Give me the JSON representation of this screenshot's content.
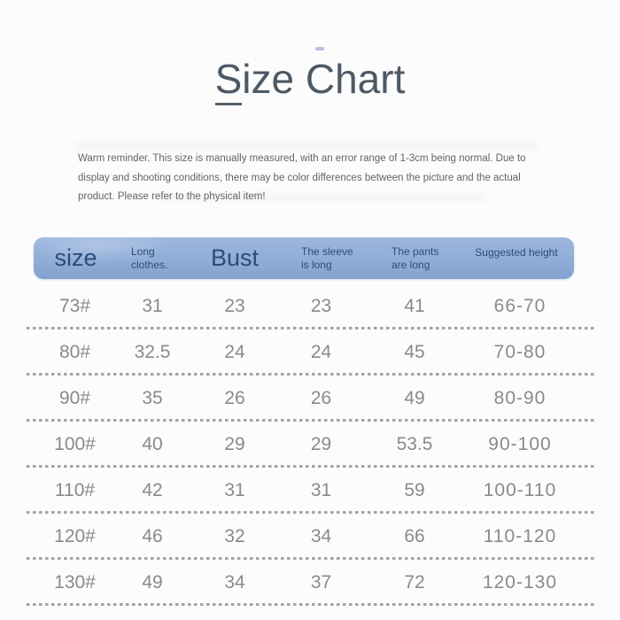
{
  "page": {
    "title_first_letter": "S",
    "title_rest": "ize Chart"
  },
  "notice": {
    "text": "Warm reminder. This size is manually measured, with an error range of 1-3cm being normal. Due to display and shooting conditions, there may be color differences between the picture and the actual product. Please refer to the physical item!"
  },
  "table_header": {
    "col1": "size",
    "col2_line1": "Long",
    "col2_line2": "clothes.",
    "col3": "Bust",
    "col4_line1": "The sleeve",
    "col4_line2": "is long",
    "col5_line1": "The pants",
    "col5_line2": "are long",
    "col6": "Suggested height"
  },
  "colors": {
    "header_bg": "#8fadd7",
    "header_text": "#2c4d77",
    "row_text": "#8a8a8a",
    "divider": "#a3a3a3",
    "title_text": "#4d5965"
  },
  "chart_data": {
    "type": "table",
    "title": "Size Chart",
    "columns": [
      "size",
      "Long clothes.",
      "Bust",
      "The sleeve is long",
      "The pants are long",
      "Suggested height"
    ],
    "rows": [
      [
        "73#",
        "31",
        "23",
        "23",
        "41",
        "66-70"
      ],
      [
        "80#",
        "32.5",
        "24",
        "24",
        "45",
        "70-80"
      ],
      [
        "90#",
        "35",
        "26",
        "26",
        "49",
        "80-90"
      ],
      [
        "100#",
        "40",
        "29",
        "29",
        "53.5",
        "90-100"
      ],
      [
        "110#",
        "42",
        "31",
        "31",
        "59",
        "100-110"
      ],
      [
        "120#",
        "46",
        "32",
        "34",
        "66",
        "110-120"
      ],
      [
        "130#",
        "49",
        "34",
        "37",
        "72",
        "120-130"
      ]
    ]
  }
}
